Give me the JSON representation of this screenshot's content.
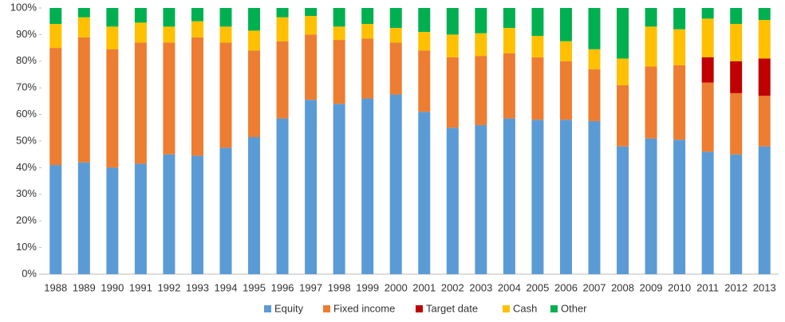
{
  "chart_data": {
    "type": "stacked_bar",
    "categories": [
      "1988",
      "1989",
      "1990",
      "1991",
      "1992",
      "1993",
      "1994",
      "1995",
      "1996",
      "1997",
      "1998",
      "1999",
      "2000",
      "2001",
      "2002",
      "2003",
      "2004",
      "2005",
      "2006",
      "2007",
      "2008",
      "2009",
      "2010",
      "2011",
      "2012",
      "2013"
    ],
    "series": [
      {
        "name": "Equity",
        "color": "#5b9bd5",
        "values": [
          41,
          42,
          40,
          41.5,
          45,
          44.5,
          47.5,
          51.5,
          58.5,
          65.5,
          64,
          66,
          67.5,
          61,
          55,
          56,
          58.5,
          58,
          58,
          57.5,
          48,
          51,
          50.5,
          46,
          45,
          48
        ]
      },
      {
        "name": "Fixed income",
        "color": "#ed7d31",
        "values": [
          44,
          47,
          44.5,
          45.5,
          42,
          44.5,
          39.5,
          32.5,
          29,
          24.5,
          24,
          22.5,
          19.5,
          23,
          26.5,
          26,
          24.5,
          23.5,
          22,
          19.5,
          23,
          27,
          28,
          26,
          23,
          19
        ]
      },
      {
        "name": "Target date",
        "color": "#c00000",
        "values": [
          null,
          null,
          null,
          null,
          null,
          null,
          null,
          null,
          null,
          null,
          null,
          null,
          null,
          null,
          null,
          null,
          null,
          null,
          null,
          null,
          null,
          null,
          null,
          9.5,
          12,
          14
        ]
      },
      {
        "name": "Cash",
        "color": "#ffc000",
        "values": [
          9,
          7.5,
          8.5,
          7.5,
          6,
          6,
          6,
          7.5,
          9,
          7,
          5,
          5.5,
          5.5,
          7,
          8.5,
          8.5,
          9.5,
          8,
          7.5,
          7.5,
          10,
          15,
          13.5,
          14.5,
          14,
          14.5
        ]
      },
      {
        "name": "Other",
        "color": "#00b050",
        "values": [
          6,
          3.5,
          7,
          5.5,
          7,
          5,
          7,
          8.5,
          3.5,
          3,
          7,
          6,
          7.5,
          9,
          10,
          9.5,
          7.5,
          10.5,
          12.5,
          15.5,
          19,
          7,
          8,
          4,
          6,
          4.5
        ]
      }
    ],
    "ylim": [
      0,
      100
    ],
    "yticks": [
      {
        "value": 0,
        "label": "0%"
      },
      {
        "value": 10,
        "label": "10%"
      },
      {
        "value": 20,
        "label": "20%"
      },
      {
        "value": 30,
        "label": "30%"
      },
      {
        "value": 40,
        "label": "40%"
      },
      {
        "value": 50,
        "label": "50%"
      },
      {
        "value": 60,
        "label": "60%"
      },
      {
        "value": 70,
        "label": "70%"
      },
      {
        "value": 80,
        "label": "80%"
      },
      {
        "value": 90,
        "label": "90%"
      },
      {
        "value": 100,
        "label": "100%"
      }
    ],
    "legend": "bottom"
  }
}
